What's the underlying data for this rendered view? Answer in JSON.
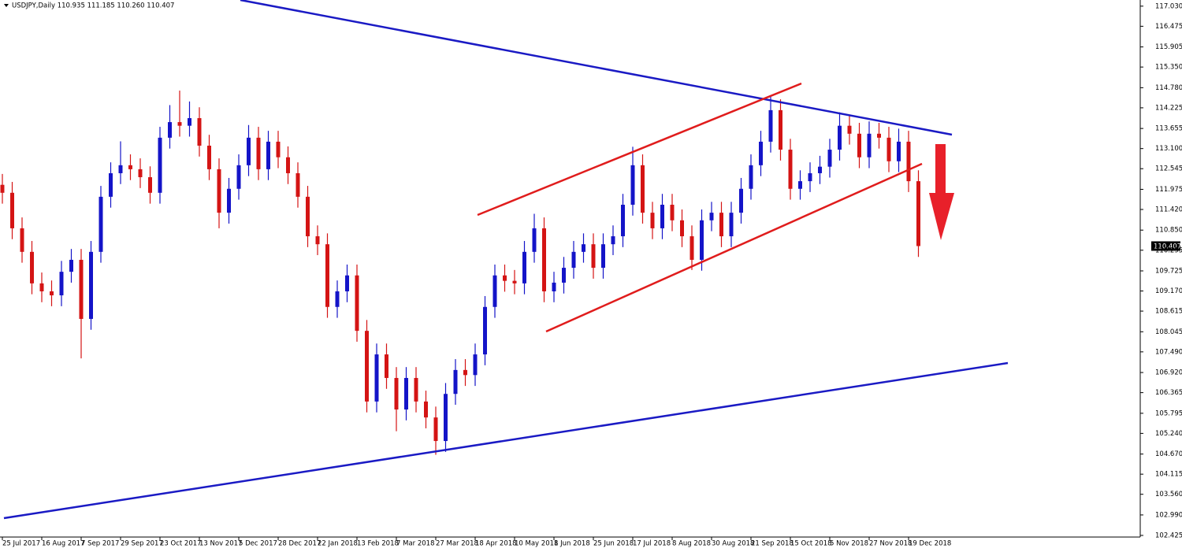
{
  "chart_data": {
    "type": "candlestick",
    "header": "USDJPY,Daily  110.935 111.185 110.260 110.407",
    "current_price_label": "110.407",
    "up_color": "#1414c8",
    "down_color": "#d41414",
    "categories": [
      "25 Jul 2017",
      null,
      null,
      null,
      "16 Aug 2017",
      null,
      null,
      null,
      "7 Sep 2017",
      null,
      null,
      null,
      "29 Sep 2017",
      null,
      null,
      null,
      "23 Oct 2017",
      null,
      null,
      null,
      "13 Nov 2017",
      null,
      null,
      null,
      "5 Dec 2017",
      null,
      null,
      null,
      "28 Dec 2017",
      null,
      null,
      null,
      "22 Jan 2018",
      null,
      null,
      null,
      "13 Feb 2018",
      null,
      null,
      null,
      "7 Mar 2018",
      null,
      null,
      null,
      "27 Mar 2018",
      null,
      null,
      null,
      "18 Apr 2018",
      null,
      null,
      null,
      "10 May 2018",
      null,
      null,
      null,
      "1 Jun 2018",
      null,
      null,
      null,
      "25 Jun 2018",
      null,
      null,
      null,
      "17 Jul 2018",
      null,
      null,
      null,
      "8 Aug 2018",
      null,
      null,
      null,
      "30 Aug 2018",
      null,
      null,
      null,
      "21 Sep 2018",
      null,
      null,
      null,
      "15 Oct 2018",
      null,
      null,
      null,
      "5 Nov 2018",
      null,
      null,
      null,
      "27 Nov 2018",
      null,
      null,
      null,
      "19 Dec 2018",
      null
    ],
    "open": [
      112.1,
      111.88,
      110.9,
      110.25,
      109.38,
      109.16,
      109.05,
      109.7,
      110.03,
      108.4,
      110.25,
      111.77,
      112.42,
      112.64,
      112.53,
      112.31,
      111.88,
      113.4,
      113.83,
      113.73,
      113.94,
      113.18,
      112.53,
      111.33,
      111.99,
      112.64,
      113.4,
      112.53,
      113.29,
      112.86,
      112.42,
      111.77,
      110.68,
      110.46,
      108.73,
      109.16,
      109.6,
      108.07,
      106.12,
      107.42,
      106.77,
      105.9,
      106.77,
      106.12,
      105.68,
      105.03,
      106.33,
      106.99,
      106.85,
      107.42,
      108.73,
      109.6,
      109.45,
      109.38,
      110.25,
      110.9,
      109.16,
      109.4,
      109.81,
      110.25,
      110.46,
      109.81,
      110.46,
      110.68,
      111.55,
      112.64,
      111.33,
      110.9,
      111.55,
      111.12,
      110.68,
      110.03,
      111.12,
      111.33,
      110.68,
      111.33,
      111.99,
      112.64,
      113.29,
      114.16,
      113.07,
      111.99,
      112.2,
      112.42,
      112.6,
      113.07,
      113.73,
      113.51,
      112.86,
      113.51,
      113.4,
      112.75,
      113.29,
      112.2
    ],
    "high": [
      112.4,
      112.18,
      111.2,
      110.55,
      109.68,
      109.46,
      110.0,
      110.33,
      110.33,
      110.55,
      112.07,
      112.72,
      113.3,
      112.94,
      112.83,
      112.61,
      113.7,
      114.3,
      114.7,
      114.4,
      114.24,
      113.48,
      112.83,
      112.29,
      112.94,
      113.75,
      113.7,
      113.59,
      113.59,
      113.16,
      112.72,
      112.07,
      110.98,
      110.76,
      109.46,
      109.9,
      109.9,
      108.37,
      107.72,
      107.72,
      107.07,
      107.07,
      107.07,
      106.42,
      105.98,
      106.63,
      107.29,
      107.29,
      107.72,
      109.03,
      109.9,
      109.9,
      109.75,
      110.55,
      111.3,
      111.2,
      109.7,
      110.11,
      110.55,
      110.76,
      110.76,
      110.76,
      110.98,
      111.85,
      113.15,
      112.94,
      111.63,
      111.85,
      111.85,
      111.42,
      110.98,
      111.42,
      111.63,
      111.63,
      111.63,
      112.29,
      112.94,
      113.59,
      114.55,
      114.46,
      113.37,
      112.5,
      112.72,
      112.9,
      113.37,
      114.1,
      114.03,
      113.81,
      113.85,
      113.81,
      113.7,
      113.65,
      113.59,
      112.5
    ],
    "low": [
      111.58,
      110.6,
      109.95,
      109.08,
      108.86,
      108.75,
      108.75,
      109.4,
      107.31,
      108.1,
      109.95,
      111.47,
      112.12,
      112.23,
      112.01,
      111.58,
      111.58,
      113.1,
      113.43,
      113.43,
      112.88,
      112.23,
      110.9,
      111.03,
      111.69,
      112.34,
      112.23,
      112.23,
      112.56,
      112.12,
      111.47,
      110.38,
      110.16,
      108.43,
      108.43,
      108.86,
      107.77,
      105.82,
      105.82,
      106.47,
      105.3,
      105.6,
      105.82,
      105.38,
      104.65,
      104.73,
      106.03,
      106.55,
      106.55,
      107.12,
      108.43,
      109.15,
      109.08,
      109.08,
      109.95,
      108.86,
      108.86,
      109.1,
      109.51,
      109.95,
      109.51,
      109.51,
      110.16,
      110.38,
      111.25,
      111.03,
      110.6,
      110.6,
      110.82,
      110.38,
      109.75,
      109.73,
      110.82,
      110.38,
      110.38,
      111.03,
      111.69,
      112.34,
      112.99,
      112.77,
      111.69,
      111.69,
      111.9,
      112.12,
      112.3,
      112.77,
      113.21,
      112.56,
      112.56,
      113.1,
      112.45,
      112.45,
      111.9,
      110.11
    ],
    "close": [
      111.88,
      110.9,
      110.25,
      109.38,
      109.16,
      109.05,
      109.7,
      110.03,
      108.4,
      110.25,
      111.77,
      112.42,
      112.64,
      112.53,
      112.31,
      111.88,
      113.4,
      113.83,
      113.73,
      113.94,
      113.18,
      112.53,
      111.33,
      111.99,
      112.64,
      113.4,
      112.53,
      113.29,
      112.86,
      112.42,
      111.77,
      110.68,
      110.46,
      108.73,
      109.16,
      109.6,
      108.07,
      106.12,
      107.42,
      106.77,
      105.9,
      106.77,
      106.12,
      105.68,
      105.03,
      106.33,
      106.99,
      106.85,
      107.42,
      108.73,
      109.6,
      109.45,
      109.38,
      110.25,
      110.9,
      109.16,
      109.4,
      109.81,
      110.25,
      110.46,
      109.81,
      110.46,
      110.68,
      111.55,
      112.64,
      111.33,
      110.9,
      111.55,
      111.12,
      110.68,
      110.03,
      111.12,
      111.33,
      110.68,
      111.33,
      111.99,
      112.64,
      113.29,
      114.16,
      113.07,
      111.99,
      112.2,
      112.42,
      112.6,
      113.07,
      113.73,
      113.51,
      112.86,
      113.51,
      113.4,
      112.75,
      113.29,
      112.2,
      110.41
    ],
    "ylim": [
      102.38,
      117.2
    ],
    "yticks": [
      {
        "value": 117.03,
        "label": "117.030"
      },
      116.475,
      115.905,
      {
        "value": 115.35,
        "label": "115.350"
      },
      {
        "value": 114.78,
        "label": "114.780"
      },
      114.225,
      113.655,
      {
        "value": 113.1,
        "label": "113.100"
      },
      112.545,
      111.975,
      {
        "value": 111.42,
        "label": "111.420"
      },
      {
        "value": 110.85,
        "label": "110.850"
      },
      110.295,
      109.725,
      {
        "value": 109.17,
        "label": "109.170"
      },
      108.615,
      108.045,
      {
        "value": 107.49,
        "label": "107.490"
      },
      {
        "value": 106.92,
        "label": "106.920"
      },
      106.365,
      105.795,
      {
        "value": 105.24,
        "label": "105.240"
      },
      {
        "value": 104.67,
        "label": "104.670"
      },
      104.115,
      {
        "value": 103.56,
        "label": "103.560"
      },
      {
        "value": 102.99,
        "label": "102.990"
      },
      102.425
    ]
  }
}
